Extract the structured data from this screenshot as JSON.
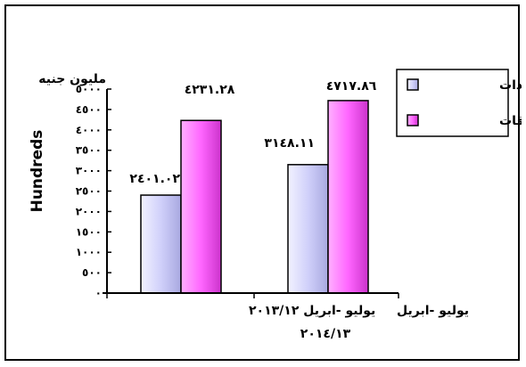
{
  "chart_data": {
    "type": "bar",
    "title": "",
    "ylabel": "Hundreds",
    "unit_label": "مليون جنيه",
    "ylim": [
      0,
      5000
    ],
    "yticks": [
      "٥٠٠٠",
      "٤٥٠٠",
      "٤٠٠٠",
      "٣٥٠٠",
      "٣٠٠٠",
      "٢٥٠٠",
      "٢٠٠٠",
      "١٥٠٠",
      "١٠٠٠",
      "٥٠٠",
      "٠"
    ],
    "ytick_values": [
      5000,
      4500,
      4000,
      3500,
      3000,
      2500,
      2000,
      1500,
      1000,
      500,
      0
    ],
    "categories": [
      {
        "line1": "يوليو -ابريل ٢٠١٣/١٢",
        "line2": ""
      },
      {
        "line1": "يوليو -ابريل",
        "line2": "٢٠١٤/١٣"
      }
    ],
    "series": [
      {
        "name": "الايــرادات",
        "color": "#ccccff",
        "values": [
          2401.02,
          3148.11
        ],
        "labels": [
          "٢٤٠١.٠٢",
          "٣١٤٨.١١"
        ]
      },
      {
        "name": "المصروفات",
        "color": "#ff66ff",
        "values": [
          4231.28,
          4717.86
        ],
        "labels": [
          "٤٢٣١.٢٨",
          "٤٧١٧.٨٦"
        ]
      }
    ],
    "legend_position": "top-right"
  }
}
